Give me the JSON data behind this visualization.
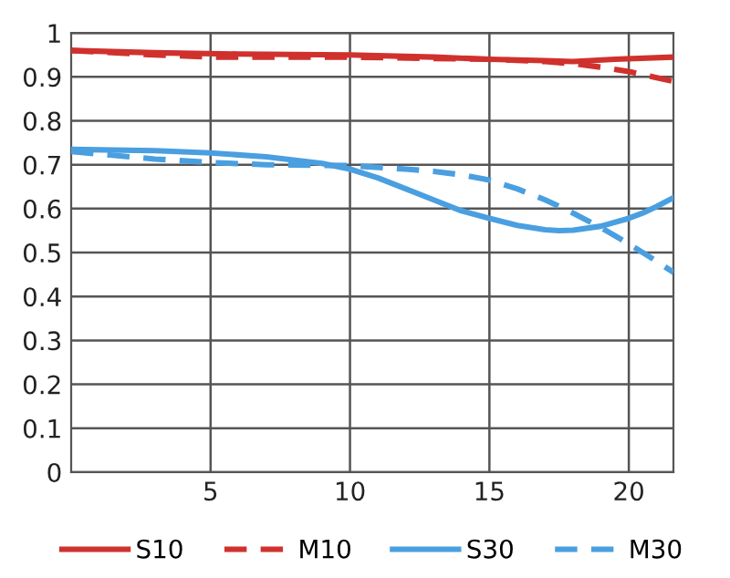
{
  "chart_data": {
    "type": "line",
    "xlim": [
      0,
      21.6
    ],
    "ylim": [
      0,
      1
    ],
    "xticks": [
      5,
      10,
      15,
      20
    ],
    "yticks": [
      0,
      0.1,
      0.2,
      0.3,
      0.4,
      0.5,
      0.6,
      0.7,
      0.8,
      0.9,
      1
    ],
    "grid": true,
    "legend": "bottom",
    "marker": "none",
    "series": [
      {
        "name": "S10",
        "color": "#d0312d",
        "line_style": "solid",
        "x": [
          0,
          3,
          6,
          10,
          13,
          15,
          17,
          18,
          19.5,
          21.6
        ],
        "values": [
          0.96,
          0.955,
          0.952,
          0.95,
          0.945,
          0.94,
          0.937,
          0.935,
          0.94,
          0.945
        ]
      },
      {
        "name": "M10",
        "color": "#d0312d",
        "line_style": "dashed",
        "x": [
          0,
          3,
          5,
          10,
          13,
          15,
          17,
          18,
          19,
          20,
          21,
          21.6
        ],
        "values": [
          0.96,
          0.95,
          0.945,
          0.945,
          0.942,
          0.94,
          0.935,
          0.93,
          0.922,
          0.912,
          0.898,
          0.89
        ]
      },
      {
        "name": "S30",
        "color": "#4a9fe0",
        "line_style": "solid",
        "x": [
          0,
          3,
          5,
          7,
          9,
          10,
          11,
          12,
          13,
          14,
          15,
          16,
          17,
          17.5,
          18,
          19,
          20,
          20.5,
          21,
          21.6
        ],
        "values": [
          0.735,
          0.732,
          0.727,
          0.718,
          0.703,
          0.69,
          0.67,
          0.645,
          0.62,
          0.595,
          0.578,
          0.562,
          0.552,
          0.55,
          0.551,
          0.56,
          0.578,
          0.59,
          0.605,
          0.625
        ]
      },
      {
        "name": "M30",
        "color": "#4a9fe0",
        "line_style": "dashed",
        "x": [
          0,
          3,
          5,
          7,
          10,
          12,
          13,
          14,
          15,
          16,
          17,
          18,
          19,
          20,
          21,
          21.6
        ],
        "values": [
          0.73,
          0.713,
          0.705,
          0.7,
          0.698,
          0.69,
          0.685,
          0.677,
          0.665,
          0.645,
          0.62,
          0.59,
          0.557,
          0.52,
          0.48,
          0.455
        ]
      }
    ]
  }
}
